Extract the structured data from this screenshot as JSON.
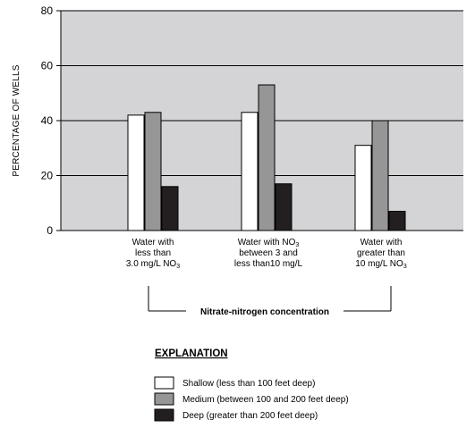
{
  "chart_data": {
    "type": "bar",
    "ylabel": "PERCENTAGE OF WELLS",
    "ylim": [
      0,
      80
    ],
    "yticks": [
      0,
      20,
      40,
      60,
      80
    ],
    "grid": true,
    "categories": [
      "Water with less than 3.0 mg/L NO3",
      "Water with NO3 between 3 and less than10 mg/L",
      "Water with greater than 10 mg/L NO3"
    ],
    "category_lines": [
      [
        {
          "t": "Water with"
        },
        {
          "t": "less than"
        },
        {
          "t": "3.0 mg/L NO",
          "sub": "3"
        }
      ],
      [
        {
          "t": "Water with NO",
          "sub": "3"
        },
        {
          "t": "between 3 and"
        },
        {
          "t": "less than10 mg/L"
        }
      ],
      [
        {
          "t": "Water with"
        },
        {
          "t": "greater than"
        },
        {
          "t": "10 mg/L NO",
          "sub": "3"
        }
      ]
    ],
    "series": [
      {
        "name": "Shallow (less than 100 feet deep)",
        "color": "#ffffff",
        "values": [
          42,
          43,
          31
        ]
      },
      {
        "name": "Medium (between 100 and 200 feet deep)",
        "color": "#969696",
        "values": [
          43,
          53,
          40
        ]
      },
      {
        "name": "Deep (greater than 200 feet deep)",
        "color": "#231f20",
        "values": [
          16,
          17,
          7
        ]
      }
    ],
    "bracket_label": "Nitrate-nitrogen concentration",
    "legend_title": "EXPLANATION",
    "legend": [
      "Shallow (less than 100 feet deep)",
      "Medium (between 100 and 200 feet deep)",
      "Deep (greater than 200 feet deep)"
    ],
    "plot_background": "#d4d4d6"
  }
}
